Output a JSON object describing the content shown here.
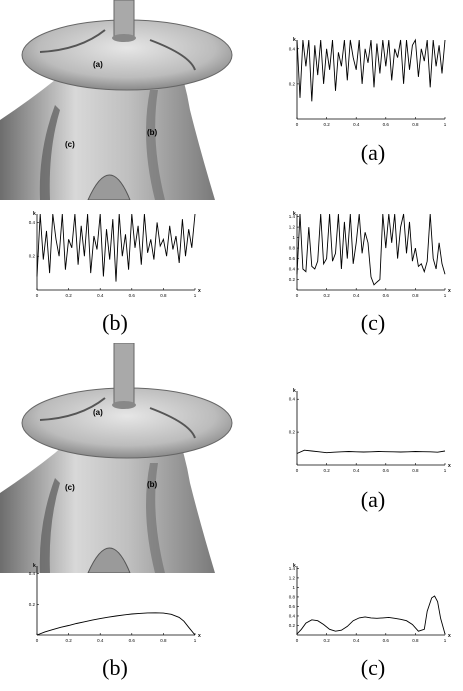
{
  "figure": {
    "top": {
      "render_labels": [
        "(a)",
        "(b)",
        "(c)"
      ],
      "plot_a": {
        "caption": "(a)"
      },
      "plot_b": {
        "caption": "(b)"
      },
      "plot_c": {
        "caption": "(c)"
      }
    },
    "bottom": {
      "render_labels": [
        "(a)",
        "(b)",
        "(c)"
      ],
      "plot_a": {
        "caption": "(a)"
      },
      "plot_b": {
        "caption": "(b)"
      },
      "plot_c": {
        "caption": "(c)"
      }
    }
  },
  "chart_data": [
    {
      "id": "top-a",
      "type": "line",
      "ylabel": "k",
      "xlabel": "",
      "xlim": [
        0,
        1
      ],
      "ylim": [
        0,
        0.45
      ],
      "xticks": [
        "0",
        "0.2",
        "0.4",
        "0.6",
        "0.8",
        "1"
      ],
      "yticks": [
        "0.2",
        "0.4"
      ],
      "series": [
        {
          "x": [
            0,
            0.02,
            0.04,
            0.06,
            0.08,
            0.1,
            0.12,
            0.14,
            0.16,
            0.18,
            0.2,
            0.22,
            0.24,
            0.26,
            0.28,
            0.3,
            0.32,
            0.34,
            0.36,
            0.38,
            0.4,
            0.42,
            0.44,
            0.46,
            0.48,
            0.5,
            0.52,
            0.54,
            0.56,
            0.58,
            0.6,
            0.62,
            0.64,
            0.66,
            0.68,
            0.7,
            0.72,
            0.74,
            0.76,
            0.78,
            0.8,
            0.82,
            0.84,
            0.86,
            0.88,
            0.9,
            0.92,
            0.94,
            0.96,
            0.98,
            1
          ],
          "y": [
            0.45,
            0.12,
            0.45,
            0.3,
            0.45,
            0.1,
            0.42,
            0.25,
            0.45,
            0.2,
            0.4,
            0.28,
            0.45,
            0.16,
            0.38,
            0.3,
            0.45,
            0.22,
            0.45,
            0.35,
            0.28,
            0.45,
            0.2,
            0.4,
            0.32,
            0.45,
            0.18,
            0.43,
            0.26,
            0.45,
            0.3,
            0.45,
            0.22,
            0.4,
            0.35,
            0.45,
            0.2,
            0.45,
            0.28,
            0.42,
            0.45,
            0.24,
            0.4,
            0.33,
            0.45,
            0.18,
            0.45,
            0.3,
            0.42,
            0.26,
            0.45
          ]
        }
      ]
    },
    {
      "id": "top-b",
      "type": "line",
      "ylabel": "k",
      "xlabel": "x",
      "xlim": [
        0,
        1
      ],
      "ylim": [
        0,
        0.45
      ],
      "xticks": [
        "0",
        "0.2",
        "0.4",
        "0.6",
        "0.8",
        "1"
      ],
      "yticks": [
        "0.2",
        "0.4"
      ],
      "series": [
        {
          "x": [
            0,
            0.02,
            0.04,
            0.06,
            0.08,
            0.1,
            0.12,
            0.14,
            0.16,
            0.18,
            0.2,
            0.22,
            0.24,
            0.26,
            0.28,
            0.3,
            0.32,
            0.34,
            0.36,
            0.38,
            0.4,
            0.42,
            0.44,
            0.46,
            0.48,
            0.5,
            0.52,
            0.54,
            0.56,
            0.58,
            0.6,
            0.62,
            0.64,
            0.66,
            0.68,
            0.7,
            0.72,
            0.74,
            0.76,
            0.78,
            0.8,
            0.82,
            0.84,
            0.86,
            0.88,
            0.9,
            0.92,
            0.94,
            0.96,
            0.98,
            1
          ],
          "y": [
            0.08,
            0.45,
            0.18,
            0.35,
            0.1,
            0.45,
            0.3,
            0.2,
            0.45,
            0.12,
            0.3,
            0.25,
            0.45,
            0.15,
            0.38,
            0.2,
            0.45,
            0.1,
            0.32,
            0.24,
            0.45,
            0.08,
            0.36,
            0.18,
            0.42,
            0.05,
            0.45,
            0.2,
            0.33,
            0.12,
            0.45,
            0.25,
            0.38,
            0.15,
            0.45,
            0.22,
            0.3,
            0.18,
            0.4,
            0.26,
            0.3,
            0.2,
            0.38,
            0.24,
            0.32,
            0.16,
            0.42,
            0.2,
            0.36,
            0.25,
            0.45
          ]
        }
      ]
    },
    {
      "id": "top-c",
      "type": "line",
      "ylabel": "k",
      "xlabel": "x",
      "xlim": [
        0,
        1
      ],
      "ylim": [
        0,
        1.45
      ],
      "xticks": [
        "0",
        "0.2",
        "0.4",
        "0.6",
        "0.8",
        "1"
      ],
      "yticks": [
        "0.2",
        "0.4",
        "0.6",
        "0.8",
        "1",
        "1.2",
        "1.4"
      ],
      "series": [
        {
          "x": [
            0,
            0.02,
            0.04,
            0.06,
            0.08,
            0.1,
            0.12,
            0.14,
            0.16,
            0.18,
            0.2,
            0.22,
            0.24,
            0.26,
            0.28,
            0.3,
            0.32,
            0.34,
            0.36,
            0.38,
            0.4,
            0.42,
            0.44,
            0.46,
            0.48,
            0.5,
            0.52,
            0.54,
            0.56,
            0.58,
            0.6,
            0.62,
            0.64,
            0.66,
            0.68,
            0.7,
            0.72,
            0.74,
            0.76,
            0.78,
            0.8,
            0.82,
            0.84,
            0.86,
            0.88,
            0.9,
            0.92,
            0.94,
            0.96,
            0.98,
            1
          ],
          "y": [
            0.3,
            1.45,
            0.4,
            0.35,
            1.2,
            0.45,
            0.4,
            0.55,
            1.45,
            0.5,
            0.6,
            1.45,
            0.55,
            0.7,
            1.45,
            0.4,
            1.3,
            0.6,
            1.45,
            0.5,
            0.9,
            1.45,
            0.7,
            1.1,
            0.9,
            0.25,
            0.1,
            0.15,
            0.2,
            1.45,
            0.8,
            1.45,
            0.9,
            1.45,
            0.6,
            1.2,
            1.45,
            0.7,
            1.3,
            0.55,
            0.8,
            0.45,
            0.5,
            0.35,
            0.55,
            1.45,
            0.6,
            0.4,
            0.9,
            0.5,
            0.3
          ]
        }
      ]
    },
    {
      "id": "bottom-a",
      "type": "line",
      "ylabel": "k",
      "xlabel": "x",
      "xlim": [
        0,
        1
      ],
      "ylim": [
        0,
        0.45
      ],
      "xticks": [
        "0",
        "0.2",
        "0.4",
        "0.6",
        "0.8",
        "1"
      ],
      "yticks": [
        "0.2",
        "0.4"
      ],
      "series": [
        {
          "x": [
            0,
            0.05,
            0.1,
            0.15,
            0.2,
            0.25,
            0.3,
            0.35,
            0.4,
            0.45,
            0.5,
            0.55,
            0.6,
            0.65,
            0.7,
            0.75,
            0.8,
            0.85,
            0.9,
            0.95,
            1
          ],
          "y": [
            0.07,
            0.09,
            0.085,
            0.08,
            0.075,
            0.078,
            0.08,
            0.082,
            0.08,
            0.079,
            0.08,
            0.082,
            0.081,
            0.08,
            0.079,
            0.08,
            0.082,
            0.081,
            0.08,
            0.078,
            0.085
          ]
        }
      ]
    },
    {
      "id": "bottom-b",
      "type": "line",
      "ylabel": "k",
      "xlabel": "x",
      "xlim": [
        0,
        1
      ],
      "ylim": [
        0,
        0.45
      ],
      "xticks": [
        "0",
        "0.2",
        "0.4",
        "0.6",
        "0.8",
        "1"
      ],
      "yticks": [
        "0.2",
        "0.4"
      ],
      "series": [
        {
          "x": [
            0,
            0.05,
            0.1,
            0.15,
            0.2,
            0.25,
            0.3,
            0.35,
            0.4,
            0.45,
            0.5,
            0.55,
            0.6,
            0.65,
            0.7,
            0.75,
            0.8,
            0.85,
            0.9,
            0.93,
            0.96,
            1
          ],
          "y": [
            0.0,
            0.02,
            0.035,
            0.05,
            0.062,
            0.075,
            0.086,
            0.097,
            0.107,
            0.116,
            0.124,
            0.131,
            0.137,
            0.141,
            0.144,
            0.145,
            0.143,
            0.135,
            0.115,
            0.09,
            0.05,
            0.0
          ]
        }
      ]
    },
    {
      "id": "bottom-c",
      "type": "line",
      "ylabel": "k",
      "xlabel": "x",
      "xlim": [
        0,
        1
      ],
      "ylim": [
        0,
        1.45
      ],
      "xticks": [
        "0",
        "0.2",
        "0.4",
        "0.6",
        "0.8",
        "1"
      ],
      "yticks": [
        "0.2",
        "0.4",
        "0.6",
        "0.8",
        "1",
        "1.2",
        "1.4"
      ],
      "series": [
        {
          "x": [
            0,
            0.03,
            0.06,
            0.1,
            0.14,
            0.18,
            0.22,
            0.26,
            0.3,
            0.34,
            0.38,
            0.42,
            0.46,
            0.5,
            0.54,
            0.58,
            0.62,
            0.66,
            0.7,
            0.74,
            0.78,
            0.82,
            0.86,
            0.88,
            0.91,
            0.93,
            0.95,
            0.97,
            1
          ],
          "y": [
            0.02,
            0.12,
            0.25,
            0.32,
            0.3,
            0.22,
            0.12,
            0.08,
            0.1,
            0.18,
            0.3,
            0.36,
            0.38,
            0.36,
            0.35,
            0.36,
            0.37,
            0.35,
            0.33,
            0.3,
            0.22,
            0.08,
            0.12,
            0.5,
            0.78,
            0.82,
            0.7,
            0.35,
            0.02
          ]
        }
      ]
    }
  ]
}
